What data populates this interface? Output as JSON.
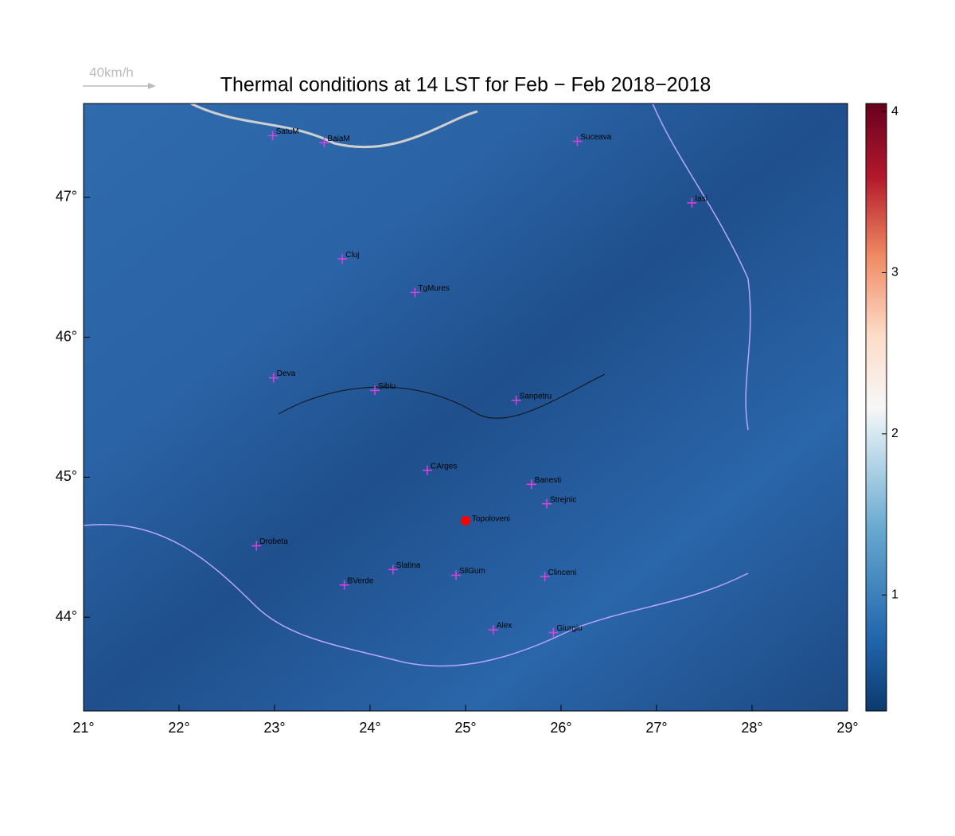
{
  "wind_legend": "40km/h",
  "title": "Thermal conditions at 14 LST for Feb − Feb  2018−2018",
  "map": {
    "xlim": [
      21,
      29
    ],
    "ylim": [
      43.33,
      47.67
    ],
    "xticks": [
      {
        "value": 21,
        "label": "21°"
      },
      {
        "value": 22,
        "label": "22°"
      },
      {
        "value": 23,
        "label": "23°"
      },
      {
        "value": 24,
        "label": "24°"
      },
      {
        "value": 25,
        "label": "25°"
      },
      {
        "value": 26,
        "label": "26°"
      },
      {
        "value": 27,
        "label": "27°"
      },
      {
        "value": 28,
        "label": "28°"
      },
      {
        "value": 29,
        "label": "29°"
      }
    ],
    "yticks": [
      {
        "value": 44,
        "label": "44°"
      },
      {
        "value": 45,
        "label": "45°"
      },
      {
        "value": 46,
        "label": "46°"
      },
      {
        "value": 47,
        "label": "47°"
      }
    ],
    "cities": [
      {
        "name": "SatuM",
        "lon": 22.98,
        "lat": 47.44
      },
      {
        "name": "BaiaM",
        "lon": 23.52,
        "lat": 47.39
      },
      {
        "name": "Suceava",
        "lon": 26.17,
        "lat": 47.4
      },
      {
        "name": "Iasi",
        "lon": 27.37,
        "lat": 46.96
      },
      {
        "name": "Cluj",
        "lon": 23.71,
        "lat": 46.56
      },
      {
        "name": "TgMures",
        "lon": 24.47,
        "lat": 46.32
      },
      {
        "name": "Deva",
        "lon": 22.99,
        "lat": 45.71
      },
      {
        "name": "Sibiu",
        "lon": 24.05,
        "lat": 45.62
      },
      {
        "name": "Sanpetru",
        "lon": 25.53,
        "lat": 45.55
      },
      {
        "name": "CArges",
        "lon": 24.6,
        "lat": 45.05
      },
      {
        "name": "Banesti",
        "lon": 25.69,
        "lat": 44.95
      },
      {
        "name": "Strejnic",
        "lon": 25.85,
        "lat": 44.81
      },
      {
        "name": "Drobeta",
        "lon": 22.81,
        "lat": 44.51
      },
      {
        "name": "Slatina",
        "lon": 24.24,
        "lat": 44.34
      },
      {
        "name": "SilGum",
        "lon": 24.9,
        "lat": 44.3
      },
      {
        "name": "Clinceni",
        "lon": 25.83,
        "lat": 44.29
      },
      {
        "name": "BVerde",
        "lon": 23.73,
        "lat": 44.23
      },
      {
        "name": "Alex",
        "lon": 25.29,
        "lat": 43.91
      },
      {
        "name": "Giurgiu",
        "lon": 25.92,
        "lat": 43.89
      }
    ],
    "highlight": {
      "name": "Topoloveni",
      "lon": 25.0,
      "lat": 44.69,
      "color": "#ff0000"
    }
  },
  "colorbar": {
    "lim": [
      0.28,
      4.05
    ],
    "ticks": [
      1,
      2,
      3,
      4
    ]
  }
}
